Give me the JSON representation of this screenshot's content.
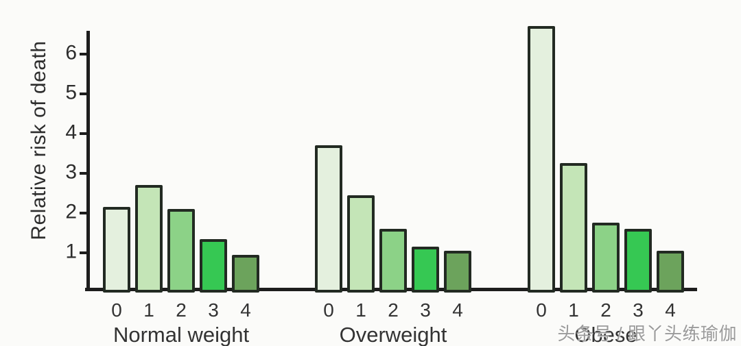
{
  "chart_data": {
    "type": "bar",
    "title": "",
    "ylabel": "Relative risk of death",
    "xlabel": "",
    "ylim": [
      0,
      6.8
    ],
    "yticks": [
      1,
      2,
      3,
      4,
      5,
      6
    ],
    "grid": false,
    "legend_position": "none",
    "bar_categories": [
      "0",
      "1",
      "2",
      "3",
      "4"
    ],
    "groups": [
      {
        "label": "Normal weight",
        "values": [
          2.15,
          2.7,
          2.1,
          1.35,
          0.95
        ]
      },
      {
        "label": "Overweight",
        "values": [
          3.7,
          2.45,
          1.6,
          1.15,
          1.05
        ]
      },
      {
        "label": "Obese",
        "values": [
          6.7,
          3.25,
          1.75,
          1.6,
          1.05
        ]
      }
    ],
    "bar_colors": [
      "#e4f0de",
      "#c4e5b7",
      "#8cd287",
      "#36c853",
      "#6ca35c"
    ],
    "bar_border_color": "#222a22",
    "axis_color": "#1d1d1d"
  },
  "watermark": {
    "text": "头条号 / 跟丫头练瑜伽",
    "color": "#9a9a9a"
  }
}
